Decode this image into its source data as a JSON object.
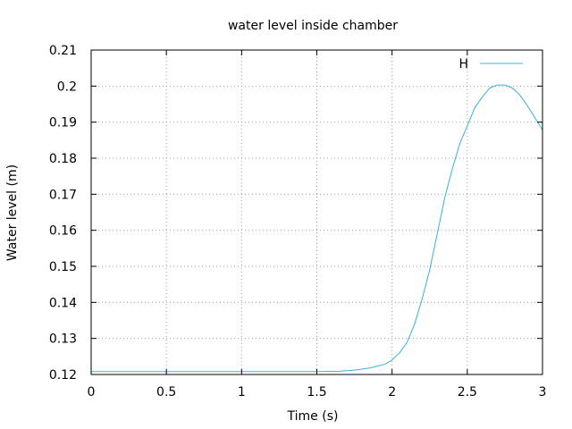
{
  "chart_data": {
    "type": "line",
    "title": "water level inside chamber",
    "xlabel": "Time (s)",
    "ylabel": "Water level (m)",
    "xlim": [
      0,
      3
    ],
    "ylim": [
      0.12,
      0.21
    ],
    "xticks": [
      "0",
      "0.5",
      "1",
      "1.5",
      "2",
      "2.5",
      "3"
    ],
    "xtick_values": [
      0,
      0.5,
      1,
      1.5,
      2,
      2.5,
      3
    ],
    "yticks": [
      "0.12",
      "0.13",
      "0.14",
      "0.15",
      "0.16",
      "0.17",
      "0.18",
      "0.19",
      "0.2",
      "0.21"
    ],
    "ytick_values": [
      0.12,
      0.13,
      0.14,
      0.15,
      0.16,
      0.17,
      0.18,
      0.19,
      0.2,
      0.21
    ],
    "grid": true,
    "legend_position": "top-right",
    "series": [
      {
        "name": "H",
        "color": "#3bb0d9",
        "x": [
          0,
          0.25,
          0.5,
          0.75,
          1.0,
          1.25,
          1.5,
          1.65,
          1.75,
          1.85,
          1.95,
          2.0,
          2.05,
          2.1,
          2.15,
          2.2,
          2.25,
          2.3,
          2.35,
          2.4,
          2.45,
          2.5,
          2.55,
          2.6,
          2.65,
          2.7,
          2.75,
          2.8,
          2.85,
          2.9,
          2.95,
          3.0
        ],
        "y": [
          0.1208,
          0.1208,
          0.1208,
          0.1208,
          0.1208,
          0.1208,
          0.1208,
          0.1209,
          0.1212,
          0.1218,
          0.1228,
          0.124,
          0.126,
          0.129,
          0.134,
          0.141,
          0.149,
          0.159,
          0.169,
          0.177,
          0.184,
          0.189,
          0.194,
          0.197,
          0.1995,
          0.2003,
          0.2003,
          0.1995,
          0.1975,
          0.1945,
          0.1912,
          0.1878
        ]
      }
    ]
  }
}
